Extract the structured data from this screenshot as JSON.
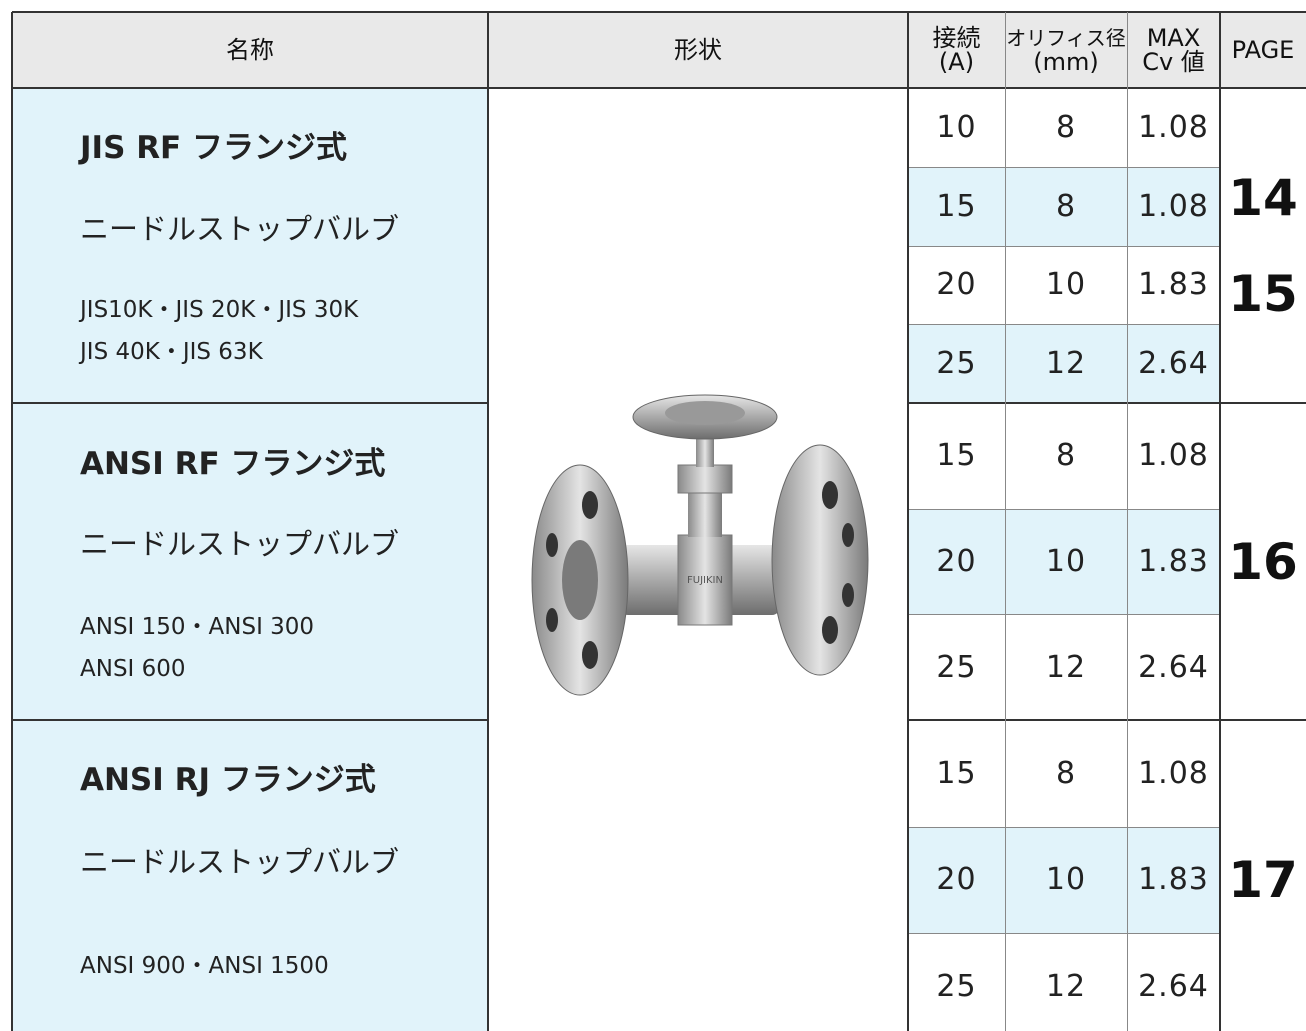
{
  "header": {
    "columns": [
      [
        "名称"
      ],
      [
        "形状"
      ],
      [
        "接続",
        "(A)"
      ],
      [
        "オリフィス径",
        "(mm)"
      ],
      [
        "MAX",
        "Cv 値"
      ],
      [
        "PAGE"
      ]
    ]
  },
  "groups": [
    {
      "title": "JIS RF フランジ式",
      "subtitle": "ニードルストップバルブ",
      "standards": [
        "JIS10K・JIS 20K・JIS 30K",
        "JIS 40K・JIS 63K"
      ],
      "rows": [
        [
          10,
          8,
          1.08
        ],
        [
          15,
          8,
          1.08
        ],
        [
          20,
          10,
          1.83
        ],
        [
          25,
          12,
          2.64
        ]
      ],
      "pages": [
        14,
        15
      ]
    },
    {
      "title": "ANSI RF フランジ式",
      "subtitle": "ニードルストップバルブ",
      "standards": [
        "ANSI 150・ANSI 300",
        "ANSI 600"
      ],
      "rows": [
        [
          15,
          8,
          1.08
        ],
        [
          20,
          10,
          1.83
        ],
        [
          25,
          12,
          2.64
        ]
      ],
      "pages": [
        16
      ]
    },
    {
      "title": "ANSI RJ フランジ式",
      "subtitle": "ニードルストップバルブ",
      "standards": [
        "ANSI 900・ANSI 1500"
      ],
      "rows": [
        [
          15,
          8,
          1.08
        ],
        [
          20,
          10,
          1.83
        ],
        [
          25,
          12,
          2.64
        ]
      ],
      "pages": [
        17
      ]
    }
  ]
}
